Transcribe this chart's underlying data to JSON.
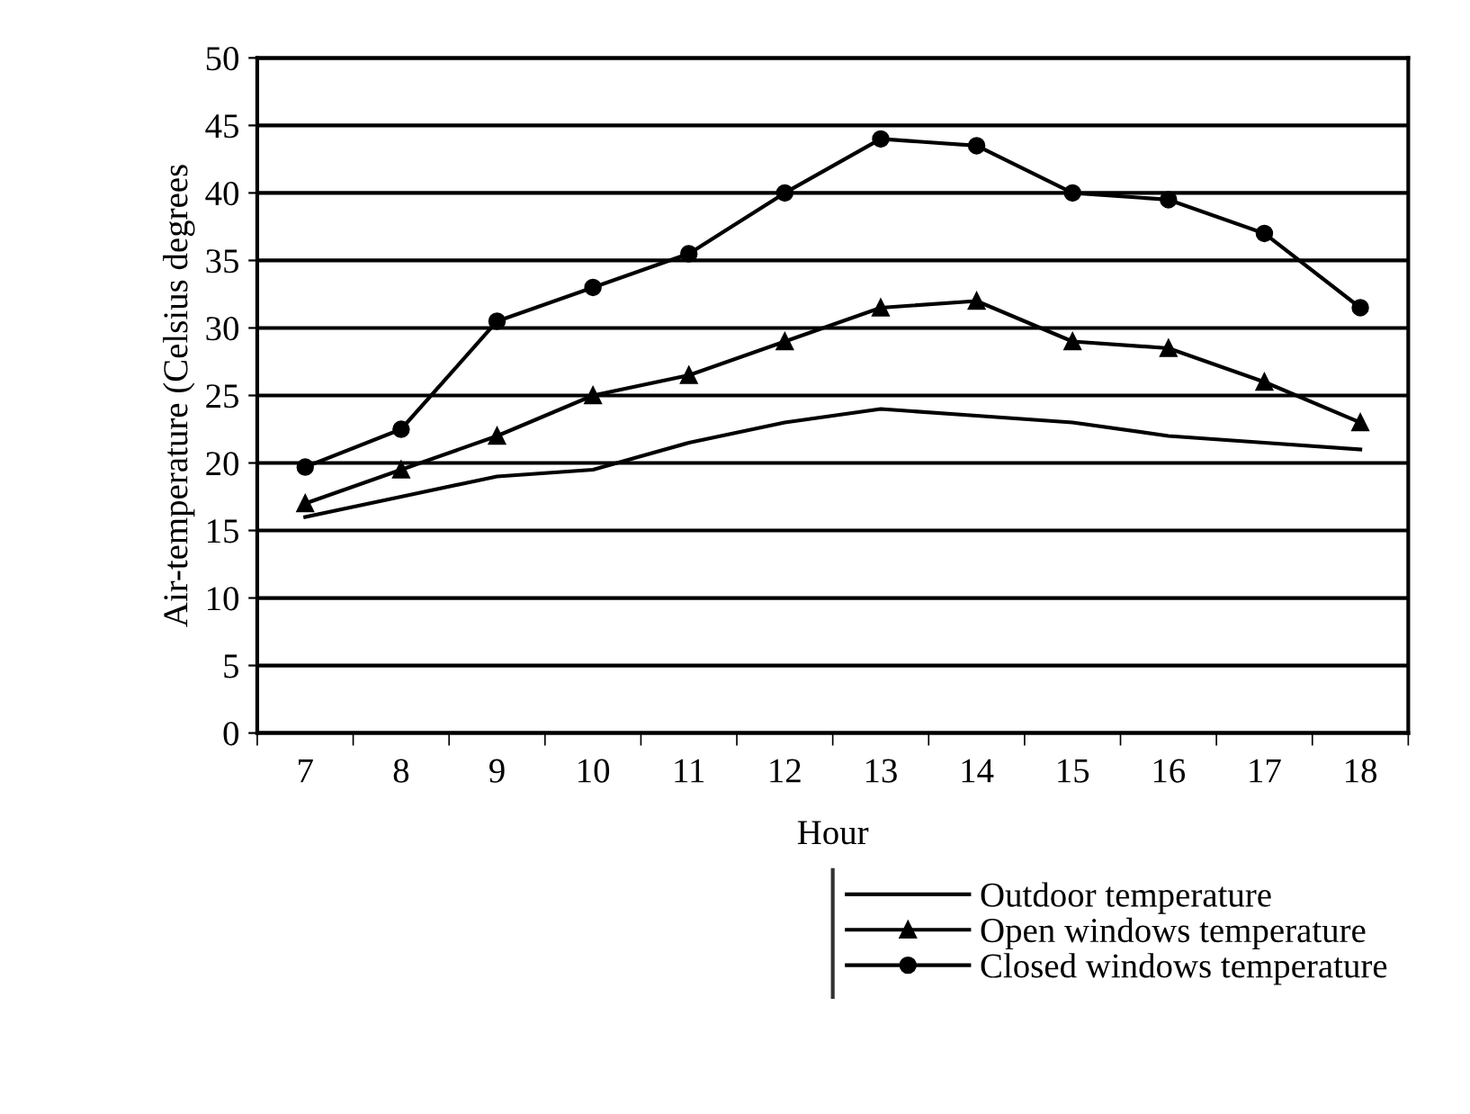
{
  "chart_data": {
    "type": "line",
    "xlabel": "Hour",
    "ylabel": "Air-temperature (Celsius degrees",
    "categories": [
      "7",
      "8",
      "9",
      "10",
      "11",
      "12",
      "13",
      "14",
      "15",
      "16",
      "17",
      "18"
    ],
    "ylim": [
      0,
      50
    ],
    "yticks": [
      0,
      5,
      10,
      15,
      20,
      25,
      30,
      35,
      40,
      45,
      50
    ],
    "grid": "y",
    "legend": "bottom",
    "series": [
      {
        "name": "Outdoor temperature",
        "color": "#000000",
        "marker": "none",
        "values": [
          16,
          17.5,
          19,
          19.5,
          21.5,
          23,
          24,
          23.5,
          23,
          22,
          21.5,
          21
        ]
      },
      {
        "name": "Open windows temperature",
        "color": "#000000",
        "marker": "triangle",
        "values": [
          17,
          19.5,
          22,
          25,
          26.5,
          29,
          31.5,
          32,
          29,
          28.5,
          26,
          23
        ]
      },
      {
        "name": "Closed windows temperature",
        "color": "#000000",
        "marker": "circle",
        "values": [
          19.7,
          22.5,
          30.5,
          33,
          35.5,
          40,
          44,
          43.5,
          40,
          39.5,
          37,
          31.5
        ]
      }
    ]
  }
}
